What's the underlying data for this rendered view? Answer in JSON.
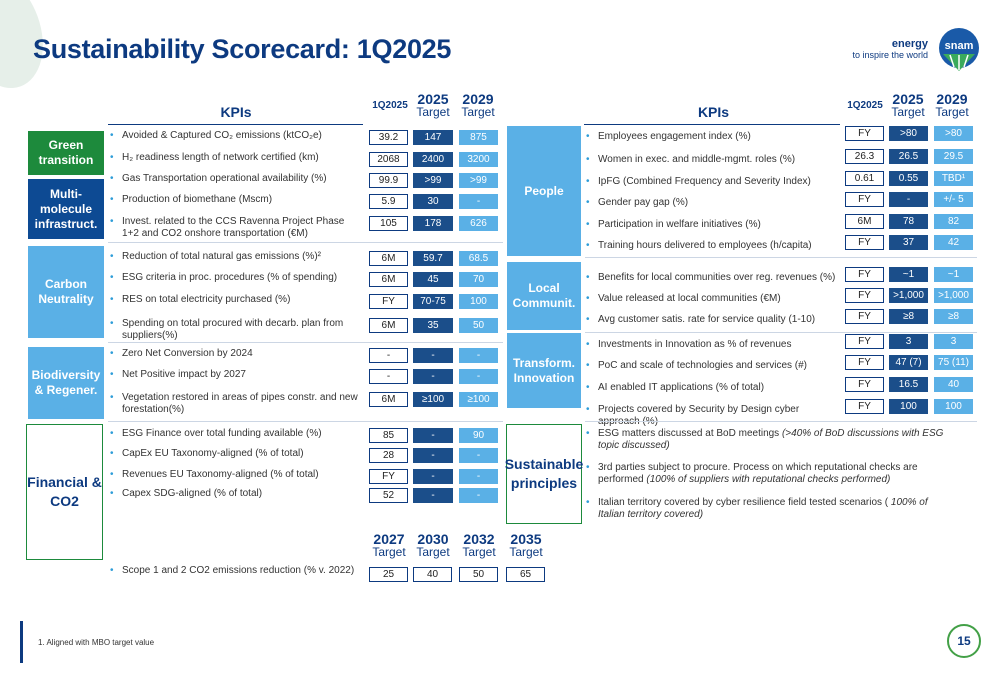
{
  "header": {
    "title": "Sustainability Scorecard: 1Q2025",
    "brand_line1": "energy",
    "brand_line2": "to inspire the world",
    "logo_text": "snam"
  },
  "left": {
    "kpis_title": "KPIs",
    "col_headers": [
      {
        "top": "1Q2025",
        "bottom": ""
      },
      {
        "top": "2025",
        "bottom": "Target"
      },
      {
        "top": "2029",
        "bottom": "Target"
      }
    ],
    "categories": [
      {
        "label": "Green transition"
      },
      {
        "label": "Multi-molecule infrastruct."
      },
      {
        "label": "Carbon Neutrality"
      },
      {
        "label": "Biodiversity & Regener."
      },
      {
        "label": "Financial & CO2"
      }
    ],
    "rows": [
      {
        "label": "Avoided & Captured CO₂ emissions (ktCO₂e)",
        "q": "39.2",
        "t25": "147",
        "t29": "875"
      },
      {
        "label": "H₂ readiness length of network certified (km)",
        "q": "2068",
        "t25": "2400",
        "t29": "3200"
      },
      {
        "label": "Gas Transportation operational availability (%)",
        "q": "99.9",
        "t25": ">99",
        "t29": ">99"
      },
      {
        "label": "Production of biomethane (Mscm)",
        "q": "5.9",
        "t25": "30",
        "t29": "-"
      },
      {
        "label": "Invest. related to the CCS Ravenna Project Phase 1+2 and CO2 onshore transportation (€M)",
        "q": "105",
        "t25": "178",
        "t29": "626"
      },
      {
        "label": "Reduction of total natural gas emissions (%)²",
        "q": "6M",
        "t25": "59.7",
        "t29": "68.5"
      },
      {
        "label": "ESG criteria in proc. procedures (% of spending)",
        "q": "6M",
        "t25": "45",
        "t29": "70"
      },
      {
        "label": "RES on total electricity purchased (%)",
        "q": "FY",
        "t25": "70-75",
        "t29": "100"
      },
      {
        "label": "Spending on total procured with decarb. plan from suppliers(%)",
        "q": "6M",
        "t25": "35",
        "t29": "50"
      },
      {
        "label": "Zero Net Conversion by 2024",
        "q": "-",
        "t25": "-",
        "t29": "-"
      },
      {
        "label": "Net Positive impact by 2027",
        "q": "-",
        "t25": "-",
        "t29": "-"
      },
      {
        "label": "Vegetation restored in areas of pipes constr. and new forestation(%)",
        "q": "6M",
        "t25": "≥100",
        "t29": "≥100"
      },
      {
        "label": "ESG Finance over total funding available (%)",
        "q": "85",
        "t25": "-",
        "t29": "90"
      },
      {
        "label": "CapEx EU Taxonomy-aligned (% of total)",
        "q": "28",
        "t25": "-",
        "t29": "-"
      },
      {
        "label": "Revenues EU Taxonomy-aligned (% of total)",
        "q": "FY",
        "t25": "-",
        "t29": "-"
      },
      {
        "label": "Capex SDG-aligned (% of total)",
        "q": "52",
        "t25": "-",
        "t29": "-"
      }
    ],
    "scope": {
      "label": "Scope 1 and 2 CO2 emissions reduction (% v. 2022)",
      "headers": [
        {
          "top": "2027",
          "bottom": "Target"
        },
        {
          "top": "2030",
          "bottom": "Target"
        },
        {
          "top": "2032",
          "bottom": "Target"
        },
        {
          "top": "2035",
          "bottom": "Target"
        }
      ],
      "values": [
        "25",
        "40",
        "50",
        "65"
      ]
    }
  },
  "right": {
    "kpis_title": "KPIs",
    "col_headers": [
      {
        "top": "1Q2025",
        "bottom": ""
      },
      {
        "top": "2025",
        "bottom": "Target"
      },
      {
        "top": "2029",
        "bottom": "Target"
      }
    ],
    "categories": [
      {
        "label": "People"
      },
      {
        "label": "Local Communit."
      },
      {
        "label": "Transform. Innovation"
      },
      {
        "label": "Sustainable principles"
      }
    ],
    "rows": [
      {
        "label": "Employees engagement index (%)",
        "q": "FY",
        "t25": ">80",
        "t29": ">80"
      },
      {
        "label": "Women in exec. and middle-mgmt. roles (%)",
        "q": "26.3",
        "t25": "26.5",
        "t29": "29.5"
      },
      {
        "label": "IpFG (Combined Frequency and Severity Index)",
        "q": "0.61",
        "t25": "0.55",
        "t29": "TBD¹"
      },
      {
        "label": "Gender pay gap (%)",
        "q": "FY",
        "t25": "-",
        "t29": "+/- 5"
      },
      {
        "label": "Participation in welfare initiatives (%)",
        "q": "6M",
        "t25": "78",
        "t29": "82"
      },
      {
        "label": "Training hours delivered to employees (h/capita)",
        "q": "FY",
        "t25": "37",
        "t29": "42"
      },
      {
        "label": "Benefits for local communities over reg. revenues (%)",
        "q": "FY",
        "t25": "~1",
        "t29": "~1"
      },
      {
        "label": "Value released at local communities (€M)",
        "q": "FY",
        "t25": ">1,000",
        "t29": ">1,000"
      },
      {
        "label": "Avg customer satis. rate for service quality (1-10)",
        "q": "FY",
        "t25": "≥8",
        "t29": "≥8"
      },
      {
        "label": "Investments in Innovation as % of revenues",
        "q": "FY",
        "t25": "3",
        "t29": "3"
      },
      {
        "label": "PoC and scale of technologies and services (#)",
        "q": "FY",
        "t25": "47 (7)",
        "t29": "75 (11)"
      },
      {
        "label": "AI enabled IT applications (% of total)",
        "q": "FY",
        "t25": "16.5",
        "t29": "40"
      },
      {
        "label": "Projects covered by Security by Design cyber approach (%)",
        "q": "FY",
        "t25": "100",
        "t29": "100"
      }
    ],
    "principles": [
      {
        "text": "ESG matters discussed at BoD meetings",
        "italic": "(>40% of BoD discussions with ESG topic discussed)"
      },
      {
        "text": "3rd parties subject to procure. Process on which reputational checks are performed",
        "italic": "(100% of suppliers with reputational checks performed)"
      },
      {
        "text": "Italian territory covered by cyber resilience field tested scenarios (",
        "italic": "100% of Italian territory covered)"
      }
    ]
  },
  "footnote": "1. Aligned with MBO target value",
  "page_number": "15",
  "colors": {
    "navy": "#0d3a80",
    "green": "#1d8a3c",
    "dark_blue": "#0d4a93",
    "light_blue": "#5ab0e6",
    "box_target": "#1b4e8a",
    "bullet": "#2e9dd8"
  }
}
